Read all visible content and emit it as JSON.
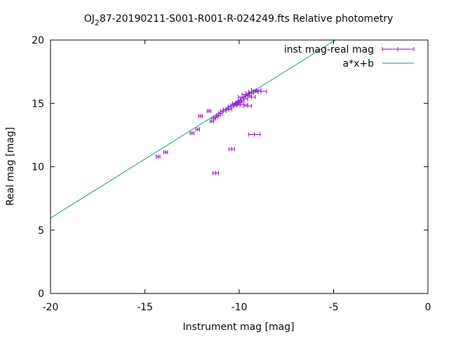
{
  "chart_data": {
    "type": "scatter",
    "title_main": "OJ",
    "title_sub": "2",
    "title_rest": "87-20190211-S001-R001-R-024249.fts Relative photometry",
    "xlabel": "Instrument mag [mag]",
    "ylabel": "Real mag [mag]",
    "xlim": [
      -20,
      0
    ],
    "ylim": [
      0,
      20
    ],
    "xticks": [
      -20,
      -15,
      -10,
      -5,
      0
    ],
    "yticks": [
      0,
      5,
      10,
      15,
      20
    ],
    "xtick_labels": [
      "-20",
      "-15",
      "-10",
      "-5",
      "0"
    ],
    "ytick_labels": [
      "0",
      "5",
      "10",
      "15",
      "20"
    ],
    "grid": false,
    "legend_position": "top-right",
    "colors": {
      "points": "#9400d3",
      "fit": "#009e73",
      "axes": "#000000"
    },
    "series": [
      {
        "name": "inst mag-real mag",
        "kind": "errorbar-points",
        "points": [
          {
            "x": -14.3,
            "y": 10.8,
            "xerr": 0.1
          },
          {
            "x": -13.9,
            "y": 11.15,
            "xerr": 0.1
          },
          {
            "x": -12.5,
            "y": 12.65,
            "xerr": 0.1
          },
          {
            "x": -12.2,
            "y": 12.95,
            "xerr": 0.1
          },
          {
            "x": -12.05,
            "y": 14.0,
            "xerr": 0.1
          },
          {
            "x": -11.6,
            "y": 14.4,
            "xerr": 0.1
          },
          {
            "x": -11.45,
            "y": 13.6,
            "xerr": 0.1
          },
          {
            "x": -11.35,
            "y": 13.8,
            "xerr": 0.1
          },
          {
            "x": -11.25,
            "y": 13.9,
            "xerr": 0.1
          },
          {
            "x": -11.1,
            "y": 14.05,
            "xerr": 0.1
          },
          {
            "x": -11.0,
            "y": 14.2,
            "xerr": 0.1
          },
          {
            "x": -10.85,
            "y": 14.4,
            "xerr": 0.15
          },
          {
            "x": -10.7,
            "y": 14.5,
            "xerr": 0.15
          },
          {
            "x": -10.55,
            "y": 14.55,
            "xerr": 0.15
          },
          {
            "x": -10.45,
            "y": 14.75,
            "xerr": 0.15
          },
          {
            "x": -10.3,
            "y": 14.85,
            "xerr": 0.15
          },
          {
            "x": -10.2,
            "y": 15.0,
            "xerr": 0.15
          },
          {
            "x": -10.1,
            "y": 14.9,
            "xerr": 0.15
          },
          {
            "x": -10.0,
            "y": 15.1,
            "xerr": 0.15
          },
          {
            "x": -9.9,
            "y": 15.2,
            "xerr": 0.15
          },
          {
            "x": -9.85,
            "y": 15.5,
            "xerr": 0.2
          },
          {
            "x": -9.75,
            "y": 15.35,
            "xerr": 0.2
          },
          {
            "x": -9.65,
            "y": 15.7,
            "xerr": 0.2
          },
          {
            "x": -9.55,
            "y": 15.6,
            "xerr": 0.2
          },
          {
            "x": -9.45,
            "y": 15.8,
            "xerr": 0.2
          },
          {
            "x": -9.35,
            "y": 15.5,
            "xerr": 0.2
          },
          {
            "x": -9.25,
            "y": 15.9,
            "xerr": 0.25
          },
          {
            "x": -9.1,
            "y": 16.05,
            "xerr": 0.25
          },
          {
            "x": -8.85,
            "y": 15.95,
            "xerr": 0.3
          },
          {
            "x": -9.75,
            "y": 14.9,
            "xerr": 0.2
          },
          {
            "x": -9.55,
            "y": 14.8,
            "xerr": 0.2
          },
          {
            "x": -9.2,
            "y": 12.55,
            "xerr": 0.3
          },
          {
            "x": -10.4,
            "y": 11.4,
            "xerr": 0.15
          },
          {
            "x": -11.25,
            "y": 9.5,
            "xerr": 0.15
          }
        ]
      },
      {
        "name": "a*x+b",
        "kind": "line",
        "x": [
          -20,
          -4.9
        ],
        "y": [
          5.95,
          20.0
        ]
      }
    ]
  }
}
